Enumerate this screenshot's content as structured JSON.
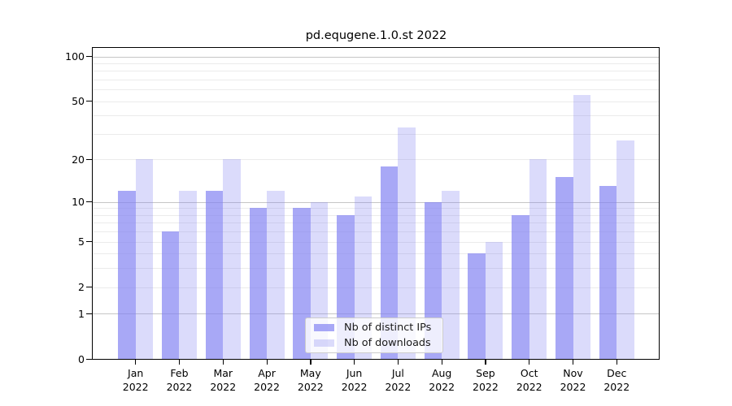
{
  "title": "pd.equgene.1.0.st 2022",
  "colors": {
    "bar_fill_dark": "rgba(127,127,242,0.68)",
    "bar_fill_light": "rgba(127,127,242,0.28)",
    "minor_gridline": "#ebebeb",
    "major_gridline": "#c6c6c6",
    "axis": "#000000",
    "legend_border": "#cccccc",
    "legend_background": "rgba(255,255,255,0.8)"
  },
  "chart_data": {
    "type": "bar",
    "title": "pd.equgene.1.0.st 2022",
    "categories": [
      "Jan",
      "Feb",
      "Mar",
      "Apr",
      "May",
      "Jun",
      "Jul",
      "Aug",
      "Sep",
      "Oct",
      "Nov",
      "Dec"
    ],
    "year": "2022",
    "series": [
      {
        "name": "Nb of distinct IPs",
        "values": [
          12,
          6,
          12,
          9,
          9,
          8,
          18,
          10,
          4,
          8,
          15,
          13
        ]
      },
      {
        "name": "Nb of downloads",
        "values": [
          20,
          12,
          20,
          12,
          10,
          11,
          33,
          12,
          5,
          20,
          55,
          27
        ]
      }
    ],
    "yscale": "log1p",
    "ylim": [
      0,
      100
    ],
    "yticks": [
      100,
      50,
      20,
      10,
      5,
      2,
      1,
      0
    ],
    "minor_gridlines": [
      2,
      3,
      4,
      5,
      6,
      7,
      8,
      9,
      20,
      30,
      40,
      50,
      60,
      70,
      80,
      90
    ],
    "major_gridlines": [
      1,
      10,
      100
    ],
    "grid": true,
    "legend_position": "lower center"
  }
}
